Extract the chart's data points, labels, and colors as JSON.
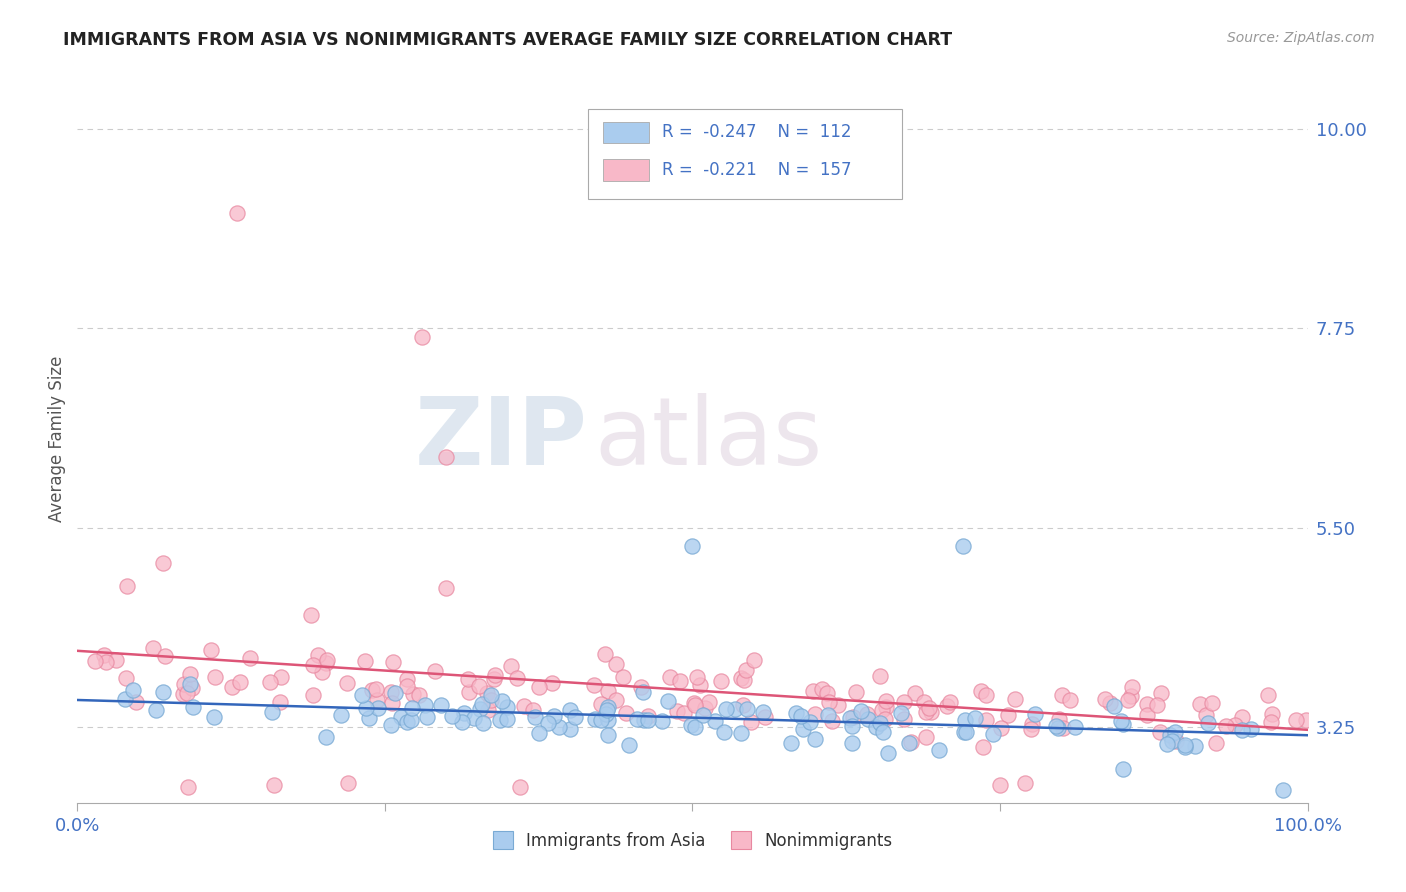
{
  "title": "IMMIGRANTS FROM ASIA VS NONIMMIGRANTS AVERAGE FAMILY SIZE CORRELATION CHART",
  "source": "Source: ZipAtlas.com",
  "ylabel": "Average Family Size",
  "yticks": [
    3.25,
    5.5,
    7.75,
    10.0
  ],
  "xlim": [
    0.0,
    1.0
  ],
  "ylim": [
    2.4,
    10.6
  ],
  "series": [
    {
      "name": "Immigrants from Asia",
      "R": -0.247,
      "N": 112,
      "color": "#aaccee",
      "edge_color": "#7aaad4",
      "trend_color": "#3366bb"
    },
    {
      "name": "Nonimmigrants",
      "R": -0.221,
      "N": 157,
      "color": "#f8b8c8",
      "edge_color": "#e888a0",
      "trend_color": "#dd5577"
    }
  ],
  "watermark_zip": "ZIP",
  "watermark_atlas": "atlas",
  "watermark_color_zip": "#c8d8e8",
  "watermark_color_atlas": "#d4c8d8",
  "background_color": "#ffffff",
  "grid_color": "#cccccc",
  "axis_color": "#4472c4",
  "title_color": "#222222",
  "legend_box_colors": [
    "#aaccee",
    "#f8b8c8"
  ]
}
